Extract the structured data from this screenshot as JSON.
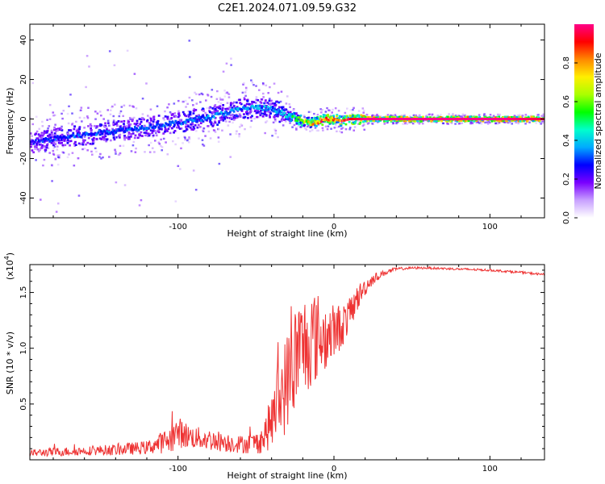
{
  "title": "C2E1.2024.071.09.59.G32",
  "chart_data": [
    {
      "type": "heatmap",
      "xlabel": "Height of straight line (km)",
      "ylabel": "Frequency (Hz)",
      "xlim": [
        -195,
        135
      ],
      "ylim": [
        -50,
        48
      ],
      "x_ticks": [
        -100,
        0,
        100
      ],
      "y_ticks": [
        -40,
        -20,
        0,
        20,
        40
      ],
      "ridge": {
        "x": [
          -193,
          -180,
          -160,
          -140,
          -120,
          -100,
          -80,
          -70,
          -60,
          -50,
          -40,
          -30,
          -20,
          -15,
          -10,
          -5,
          0,
          5,
          10,
          20,
          40,
          80,
          110,
          135
        ],
        "y": [
          -12,
          -10,
          -8,
          -6,
          -4,
          -2,
          1,
          3,
          5,
          6,
          5,
          2,
          -1,
          -2,
          -1,
          0,
          0,
          -1,
          0,
          0,
          0,
          0,
          0,
          0
        ],
        "normalized_amplitude": [
          0.25,
          0.3,
          0.3,
          0.3,
          0.3,
          0.3,
          0.35,
          0.35,
          0.35,
          0.35,
          0.35,
          0.4,
          0.6,
          0.7,
          0.8,
          0.8,
          0.85,
          0.85,
          0.9,
          1.0,
          1.0,
          1.0,
          1.0,
          0.95
        ]
      },
      "colorbar": {
        "label": "Normalized spectral amplitude",
        "range": [
          0,
          1
        ],
        "ticks": [
          "0.0",
          "0.2",
          "0.4",
          "0.6",
          "0.8"
        ],
        "colors": [
          "#ffffff",
          "#c8a0ff",
          "#7a00ff",
          "#0000ff",
          "#00aaff",
          "#00ffcc",
          "#00ff00",
          "#aaff00",
          "#ffee00",
          "#ff8800",
          "#ff0000",
          "#ff0088"
        ]
      }
    },
    {
      "type": "line",
      "xlabel": "Height of straight line (km)",
      "ylabel": "SNR (10 * v/v)",
      "y_multiplier": "(x10",
      "y_multiplier_exp": "4",
      "y_multiplier_close": ")",
      "xlim": [
        -195,
        135
      ],
      "ylim": [
        0,
        1.75
      ],
      "x_ticks": [
        -100,
        0,
        100
      ],
      "y_ticks": [
        "0.5",
        "1.0",
        "1.5"
      ],
      "y_tick_values": [
        0.5,
        1.0,
        1.5
      ],
      "color": "#ee3333",
      "series": [
        {
          "x": [
            -195,
            -180,
            -160,
            -140,
            -120,
            -105,
            -100,
            -95,
            -90,
            -80,
            -70,
            -60,
            -50,
            -45,
            -40,
            -35,
            -30,
            -25,
            -20,
            -15,
            -10,
            -5,
            0,
            5,
            10,
            15,
            20,
            25,
            30,
            35,
            40,
            50,
            60,
            80,
            100,
            120,
            135
          ],
          "y": [
            0.06,
            0.07,
            0.08,
            0.09,
            0.11,
            0.18,
            0.25,
            0.22,
            0.2,
            0.18,
            0.16,
            0.14,
            0.15,
            0.2,
            0.35,
            0.55,
            0.7,
            0.9,
            1.0,
            1.1,
            1.1,
            1.1,
            1.15,
            1.2,
            1.3,
            1.45,
            1.55,
            1.62,
            1.66,
            1.69,
            1.71,
            1.72,
            1.72,
            1.71,
            1.7,
            1.68,
            1.66
          ],
          "noise": [
            0.03,
            0.04,
            0.04,
            0.05,
            0.06,
            0.12,
            0.14,
            0.12,
            0.1,
            0.1,
            0.09,
            0.08,
            0.1,
            0.14,
            0.25,
            0.4,
            0.45,
            0.5,
            0.5,
            0.45,
            0.4,
            0.3,
            0.25,
            0.2,
            0.15,
            0.12,
            0.08,
            0.05,
            0.03,
            0.02,
            0.015,
            0.01,
            0.01,
            0.01,
            0.01,
            0.01,
            0.01
          ]
        }
      ]
    }
  ]
}
